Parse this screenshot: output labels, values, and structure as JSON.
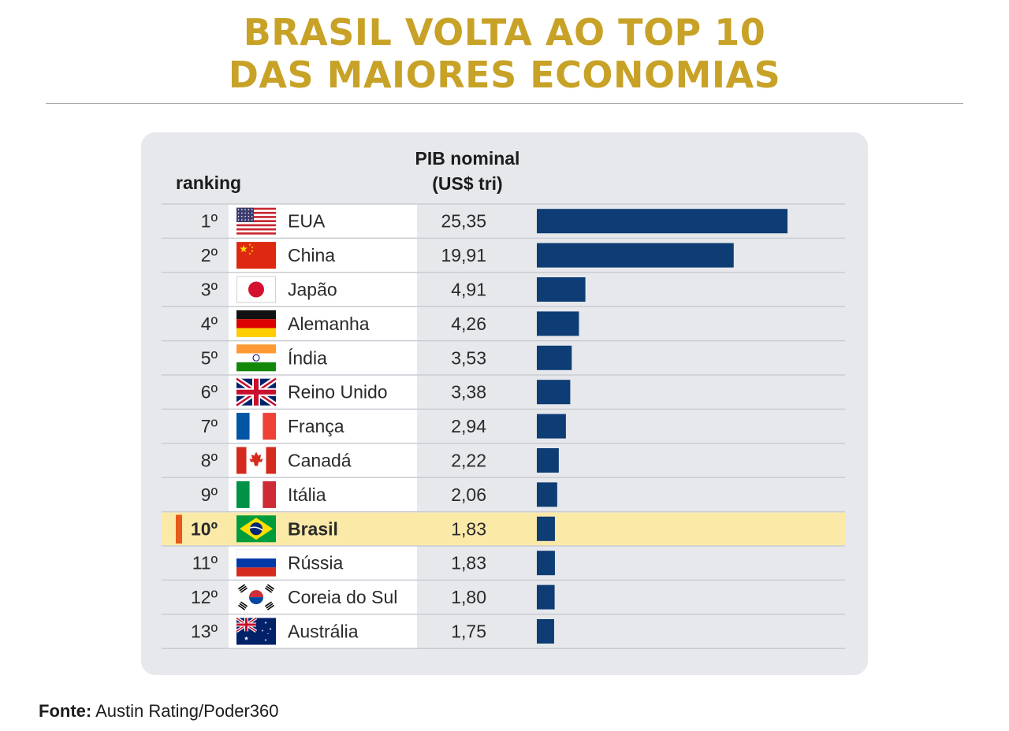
{
  "title": {
    "line1": "BRASIL VOLTA AO TOP 10",
    "line2": "DAS MAIORES ECONOMIAS"
  },
  "header": {
    "ranking": "ranking",
    "pib_line1": "PIB nominal",
    "pib_line2": "(US$ tri)"
  },
  "footer": {
    "label": "Fonte:",
    "text": "Austin Rating/Poder360"
  },
  "colors": {
    "title": "#c8a227",
    "bar": "#0d3d74",
    "highlight_row": "#fbe9a8",
    "highlight_marker": "#e8591c"
  },
  "chart_data": {
    "type": "bar",
    "orientation": "horizontal",
    "rows": [
      {
        "rank": "1º",
        "country": "EUA",
        "value_label": "25,35",
        "value": 25.35,
        "flag": "usa-flag"
      },
      {
        "rank": "2º",
        "country": "China",
        "value_label": "19,91",
        "value": 19.91,
        "flag": "china-flag"
      },
      {
        "rank": "3º",
        "country": "Japão",
        "value_label": "4,91",
        "value": 4.91,
        "flag": "japan-flag"
      },
      {
        "rank": "4º",
        "country": "Alemanha",
        "value_label": "4,26",
        "value": 4.26,
        "flag": "germany-flag"
      },
      {
        "rank": "5º",
        "country": "Índia",
        "value_label": "3,53",
        "value": 3.53,
        "flag": "india-flag"
      },
      {
        "rank": "6º",
        "country": "Reino Unido",
        "value_label": "3,38",
        "value": 3.38,
        "flag": "uk-flag"
      },
      {
        "rank": "7º",
        "country": "França",
        "value_label": "2,94",
        "value": 2.94,
        "flag": "france-flag"
      },
      {
        "rank": "8º",
        "country": "Canadá",
        "value_label": "2,22",
        "value": 2.22,
        "flag": "canada-flag"
      },
      {
        "rank": "9º",
        "country": "Itália",
        "value_label": "2,06",
        "value": 2.06,
        "flag": "italy-flag"
      },
      {
        "rank": "10º",
        "country": "Brasil",
        "value_label": "1,83",
        "value": 1.83,
        "flag": "brazil-flag",
        "highlight": true
      },
      {
        "rank": "11º",
        "country": "Rússia",
        "value_label": "1,83",
        "value": 1.83,
        "flag": "russia-flag"
      },
      {
        "rank": "12º",
        "country": "Coreia do Sul",
        "value_label": "1,80",
        "value": 1.8,
        "flag": "south-korea-flag"
      },
      {
        "rank": "13º",
        "country": "Austrália",
        "value_label": "1,75",
        "value": 1.75,
        "flag": "australia-flag"
      }
    ]
  }
}
